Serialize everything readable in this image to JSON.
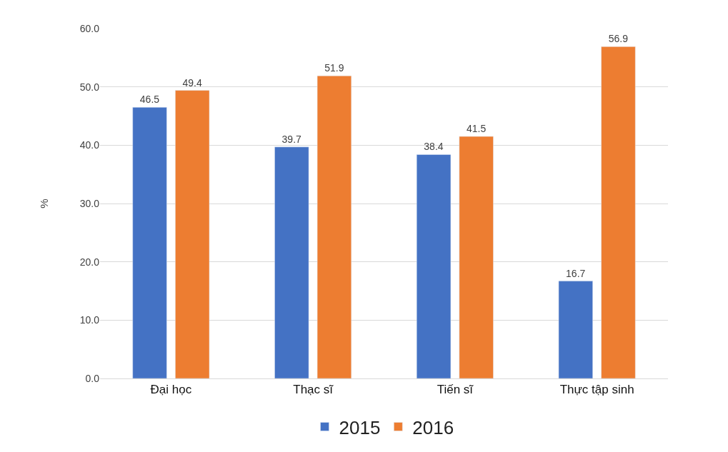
{
  "chart_data": {
    "type": "bar",
    "ylabel": "%",
    "categories": [
      "Đại học",
      "Thạc sĩ",
      "Tiến sĩ",
      "Thực tập sinh"
    ],
    "series": [
      {
        "name": "2015",
        "color": "#4472c4",
        "values": [
          46.5,
          39.7,
          38.4,
          16.7
        ]
      },
      {
        "name": "2016",
        "color": "#ed7d31",
        "values": [
          49.4,
          51.9,
          41.5,
          56.9
        ]
      }
    ],
    "ylim": [
      0,
      60
    ],
    "yticks": [
      {
        "value": 0,
        "label": "0.0"
      },
      {
        "value": 10,
        "label": "10.0"
      },
      {
        "value": 20,
        "label": "20.0"
      },
      {
        "value": 30,
        "label": "30.0"
      },
      {
        "value": 40,
        "label": "40.0"
      },
      {
        "value": 50,
        "label": "50.0"
      },
      {
        "value": 60,
        "label": "60.0"
      }
    ],
    "grid": "y",
    "legend": "bottom",
    "data_labels": true
  }
}
